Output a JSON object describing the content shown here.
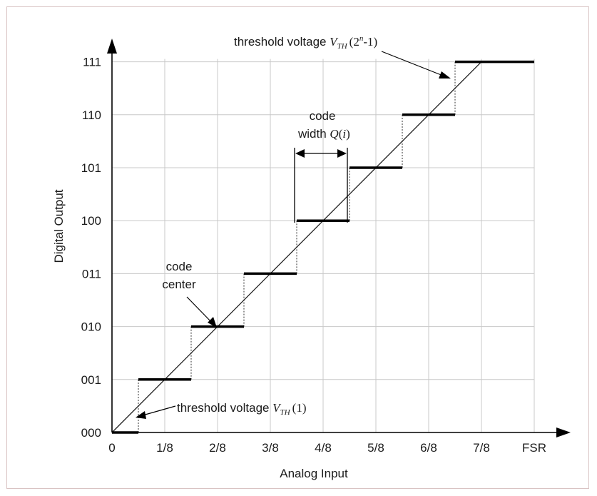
{
  "chart_data": {
    "type": "line",
    "xlabel": "Analog Input",
    "ylabel": "Digital Output",
    "x_ticks": [
      "0",
      "1/8",
      "2/8",
      "3/8",
      "4/8",
      "5/8",
      "6/8",
      "7/8",
      "FSR"
    ],
    "y_ticks": [
      "000",
      "001",
      "010",
      "011",
      "100",
      "101",
      "110",
      "111"
    ],
    "xlim": [
      0,
      1
    ],
    "ylim": [
      0,
      7
    ],
    "grid": true,
    "ideal_line": {
      "x": [
        0,
        0.875
      ],
      "y": [
        0,
        7
      ]
    },
    "steps": [
      {
        "code": 0,
        "x_start": 0.0,
        "x_end": 0.0625
      },
      {
        "code": 1,
        "x_start": 0.0625,
        "x_end": 0.1875
      },
      {
        "code": 2,
        "x_start": 0.1875,
        "x_end": 0.3125
      },
      {
        "code": 3,
        "x_start": 0.3125,
        "x_end": 0.4375
      },
      {
        "code": 4,
        "x_start": 0.4375,
        "x_end": 0.5625
      },
      {
        "code": 5,
        "x_start": 0.5625,
        "x_end": 0.6875
      },
      {
        "code": 6,
        "x_start": 0.6875,
        "x_end": 0.8125
      },
      {
        "code": 7,
        "x_start": 0.8125,
        "x_end": 1.0
      }
    ],
    "annotations": {
      "threshold_top": {
        "prefix": "threshold voltage ",
        "symbol": "V",
        "subscript": "TH",
        "arg": "(2",
        "sup": "n",
        "tail": "-1)"
      },
      "threshold_bottom": {
        "prefix": "threshold  voltage ",
        "symbol": "V",
        "subscript": "TH",
        "arg": "(1)"
      },
      "code_width": {
        "line1": "code",
        "line2": "width ",
        "symbol": "Q",
        "arg": "(",
        "arg_i": "i",
        "tail": ")"
      },
      "code_center": {
        "line1": "code",
        "line2": "center"
      }
    }
  }
}
